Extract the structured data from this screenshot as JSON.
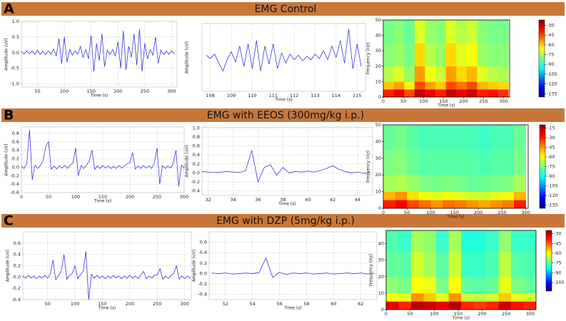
{
  "sections": [
    {
      "letter": "A",
      "title": "EMG Control"
    },
    {
      "letter": "B",
      "title": "EMG with EEOS (300mg/kg i.p.)"
    },
    {
      "letter": "C",
      "title": "EMG with DZP (5mg/kg i.p.)"
    }
  ],
  "chart_data": [
    {
      "type": "line",
      "xlabel": "Time (s)",
      "ylabel": "Amplitude (uV)",
      "color": "#1f1fd6",
      "grid": true,
      "xlim": [
        20,
        310
      ],
      "xticks": [
        50,
        100,
        150,
        200,
        250,
        300
      ],
      "ylim": [
        -1.1,
        1.0
      ],
      "yticks": [
        {
          "value": -1,
          "label": "-1.0"
        },
        -0.5,
        {
          "value": 0,
          "label": "0.0"
        },
        0.5,
        {
          "value": 1,
          "label": "1.0"
        }
      ],
      "x": [
        20,
        25,
        30,
        35,
        40,
        45,
        50,
        55,
        60,
        65,
        70,
        75,
        80,
        85,
        90,
        95,
        100,
        105,
        110,
        115,
        120,
        125,
        130,
        135,
        140,
        145,
        150,
        155,
        160,
        165,
        170,
        175,
        180,
        185,
        190,
        195,
        200,
        205,
        210,
        215,
        220,
        225,
        230,
        235,
        240,
        245,
        250,
        255,
        260,
        265,
        270,
        275,
        280,
        285,
        290,
        295,
        300,
        305
      ],
      "values": [
        0.04,
        -0.05,
        0.06,
        -0.04,
        0.05,
        -0.06,
        0.08,
        -0.05,
        0.05,
        -0.07,
        0.06,
        -0.05,
        0.12,
        -0.1,
        0.45,
        -0.35,
        0.5,
        -0.3,
        0.1,
        -0.08,
        0.06,
        -0.05,
        0.2,
        -0.15,
        0.1,
        -0.2,
        0.55,
        -0.6,
        0.3,
        -0.25,
        0.6,
        -0.45,
        0.08,
        -0.06,
        0.1,
        -0.1,
        0.35,
        -0.5,
        0.7,
        -0.55,
        0.2,
        -0.15,
        0.6,
        -0.4,
        0.75,
        -0.6,
        0.3,
        -0.2,
        0.1,
        -0.08,
        0.5,
        -0.35,
        0.08,
        -0.06,
        0.05,
        -0.05,
        0.06,
        -0.04
      ]
    },
    {
      "type": "line",
      "xlabel": "Time (s)",
      "ylabel": "Amplitude (uV)",
      "color": "#1f1fd6",
      "grid": true,
      "xlim": [
        107.6,
        115.4
      ],
      "xticks": [
        108,
        109,
        110,
        111,
        112,
        113,
        114,
        115
      ],
      "ylim": [
        -0.3,
        0.3
      ],
      "yticks": [],
      "x": [
        107.8,
        108.0,
        108.2,
        108.4,
        108.6,
        108.8,
        109.0,
        109.2,
        109.4,
        109.6,
        109.8,
        110.0,
        110.2,
        110.4,
        110.6,
        110.8,
        111.0,
        111.2,
        111.4,
        111.6,
        111.8,
        112.0,
        112.2,
        112.4,
        112.6,
        112.8,
        113.0,
        113.2,
        113.4,
        113.6,
        113.8,
        114.0,
        114.2,
        114.4,
        114.6,
        114.8,
        115.0,
        115.2
      ],
      "values": [
        0.02,
        -0.01,
        0.03,
        -0.05,
        -0.12,
        -0.02,
        0.05,
        -0.04,
        0.1,
        -0.08,
        0.12,
        -0.1,
        0.15,
        -0.12,
        0.1,
        -0.06,
        0.12,
        -0.1,
        0.04,
        -0.05,
        0.03,
        -0.02,
        0.02,
        -0.03,
        0.01,
        -0.02,
        0.03,
        -0.01,
        0.06,
        -0.02,
        0.1,
        0.0,
        0.15,
        -0.05,
        0.25,
        -0.1,
        0.12,
        -0.08
      ]
    },
    {
      "type": "heatmap",
      "xlabel": "Time (s)",
      "ylabel": "Frequency (Hz)",
      "xlim": [
        0,
        315
      ],
      "xticks": [
        0,
        50,
        100,
        150,
        200,
        250,
        300
      ],
      "ylim": [
        0,
        50
      ],
      "yticks": [
        0,
        10,
        20,
        30,
        40,
        50
      ],
      "xbins": [
        0,
        26,
        52,
        78,
        104,
        130,
        156,
        182,
        208,
        234,
        260,
        286,
        312
      ],
      "ybins": [
        0,
        5,
        10,
        20,
        35,
        50
      ],
      "clim": [
        -140,
        -22
      ],
      "cticks": [
        -30,
        -45,
        -60,
        -75,
        -90,
        -105,
        -120,
        -135
      ],
      "values": [
        [
          -40,
          -35,
          -45,
          -30,
          -35,
          -40,
          -30,
          -35,
          -30,
          -40,
          -38,
          -42
        ],
        [
          -60,
          -55,
          -65,
          -45,
          -55,
          -60,
          -45,
          -50,
          -45,
          -58,
          -60,
          -62
        ],
        [
          -75,
          -70,
          -78,
          -55,
          -68,
          -72,
          -55,
          -62,
          -58,
          -70,
          -74,
          -76
        ],
        [
          -80,
          -78,
          -82,
          -62,
          -75,
          -78,
          -62,
          -70,
          -66,
          -78,
          -80,
          -80
        ],
        [
          -82,
          -80,
          -84,
          -70,
          -78,
          -80,
          -70,
          -75,
          -72,
          -80,
          -82,
          -82
        ]
      ]
    },
    {
      "type": "line",
      "xlabel": "Time (s)",
      "ylabel": "Amplitude (uV)",
      "color": "#1f1fd6",
      "grid": true,
      "xlim": [
        0,
        300
      ],
      "xticks": [
        0,
        50,
        100,
        150,
        200,
        250,
        300
      ],
      "ylim": [
        -0.6,
        0.95
      ],
      "yticks": [
        -0.6,
        -0.4,
        -0.2,
        {
          "value": 0,
          "label": "0.0"
        },
        0.2,
        0.4,
        0.6,
        0.8
      ],
      "x": [
        0,
        5,
        10,
        15,
        20,
        25,
        30,
        35,
        40,
        45,
        50,
        55,
        60,
        65,
        70,
        75,
        80,
        85,
        90,
        95,
        100,
        105,
        110,
        115,
        120,
        125,
        130,
        135,
        140,
        145,
        150,
        155,
        160,
        165,
        170,
        175,
        180,
        185,
        190,
        195,
        200,
        205,
        210,
        215,
        220,
        225,
        230,
        235,
        240,
        245,
        250,
        255,
        260,
        265,
        270,
        275,
        280,
        285,
        290,
        295,
        300
      ],
      "values": [
        0.02,
        -0.03,
        0.1,
        0.88,
        -0.3,
        0.05,
        -0.03,
        0.04,
        0.15,
        0.5,
        0.6,
        -0.05,
        0.03,
        -0.04,
        0.03,
        -0.02,
        0.04,
        -0.03,
        0.05,
        0.1,
        0.45,
        -0.2,
        0.04,
        -0.03,
        0.05,
        0.15,
        0.4,
        -0.05,
        0.03,
        -0.03,
        0.04,
        -0.02,
        0.03,
        -0.03,
        0.02,
        -0.03,
        0.04,
        -0.02,
        0.03,
        0.08,
        0.1,
        0.35,
        -0.04,
        0.03,
        -0.03,
        0.04,
        -0.02,
        0.03,
        -0.03,
        0.1,
        0.45,
        -0.4,
        0.04,
        -0.03,
        0.03,
        -0.02,
        0.1,
        0.4,
        -0.45,
        0.05,
        -0.02
      ]
    },
    {
      "type": "line",
      "xlabel": "Time (s)",
      "ylabel": "Amplitude (uV)",
      "color": "#1f1fd6",
      "grid": true,
      "xlim": [
        31.5,
        45.2
      ],
      "xticks": [
        32,
        34,
        36,
        38,
        40,
        42,
        44
      ],
      "ylim": [
        -0.5,
        1.02
      ],
      "yticks": [
        -0.4,
        -0.2,
        {
          "value": 0,
          "label": "0.0"
        },
        0.2,
        0.4,
        0.6,
        0.8,
        {
          "value": 1,
          "label": "1.0"
        }
      ],
      "x": [
        31.5,
        32,
        32.5,
        33,
        33.5,
        34,
        34.5,
        35,
        35.5,
        36,
        36.5,
        37,
        37.5,
        38,
        38.5,
        39,
        39.5,
        40,
        40.5,
        41,
        41.5,
        42,
        42.5,
        43,
        43.5,
        44,
        44.5,
        45
      ],
      "values": [
        0.03,
        0.02,
        0.01,
        0.02,
        0.03,
        0.02,
        0.01,
        0.05,
        0.5,
        -0.2,
        0.12,
        0.18,
        -0.05,
        0.12,
        0.0,
        0.03,
        0.02,
        0.04,
        0.02,
        0.05,
        0.1,
        0.16,
        0.08,
        0.03,
        0.0,
        0.02,
        -0.01,
        0.02
      ]
    },
    {
      "type": "heatmap",
      "xlabel": "Time (s)",
      "ylabel": "Frequency (Hz)",
      "xlim": [
        0,
        305
      ],
      "xticks": [
        0,
        50,
        100,
        150,
        200,
        250,
        300
      ],
      "ylim": [
        0,
        50
      ],
      "yticks": [
        0,
        10,
        20,
        30,
        40,
        50
      ],
      "xbins": [
        0,
        25,
        50,
        75,
        100,
        125,
        150,
        175,
        200,
        225,
        250,
        275,
        300
      ],
      "ybins": [
        0,
        5,
        10,
        20,
        35,
        50
      ],
      "clim": [
        -140,
        -10
      ],
      "cticks": [
        -15,
        -30,
        -45,
        -60,
        -75,
        -90,
        -105,
        -120,
        -135
      ],
      "values": [
        [
          -30,
          -25,
          -35,
          -40,
          -45,
          -40,
          -42,
          -45,
          -48,
          -45,
          -42,
          -30
        ],
        [
          -50,
          -45,
          -55,
          -60,
          -62,
          -60,
          -62,
          -64,
          -65,
          -62,
          -60,
          -50
        ],
        [
          -70,
          -68,
          -72,
          -75,
          -76,
          -75,
          -76,
          -78,
          -78,
          -76,
          -75,
          -70
        ],
        [
          -75,
          -74,
          -78,
          -80,
          -80,
          -80,
          -80,
          -80,
          -82,
          -80,
          -80,
          -76
        ],
        [
          -78,
          -76,
          -80,
          -82,
          -82,
          -82,
          -82,
          -82,
          -84,
          -82,
          -82,
          -78
        ]
      ]
    },
    {
      "type": "line",
      "xlabel": "Time (s)",
      "ylabel": "Amplitude (uV)",
      "color": "#1f1fd6",
      "grid": true,
      "xlim": [
        5,
        312
      ],
      "xticks": [
        50,
        100,
        150,
        200,
        250,
        300
      ],
      "ylim": [
        -0.4,
        0.8
      ],
      "yticks": [
        -0.4,
        -0.2,
        {
          "value": 0,
          "label": "0.0"
        },
        0.2,
        0.4,
        0.6
      ],
      "x": [
        5,
        10,
        15,
        20,
        25,
        30,
        35,
        40,
        45,
        50,
        55,
        60,
        65,
        70,
        75,
        80,
        85,
        90,
        95,
        100,
        105,
        110,
        115,
        120,
        125,
        130,
        135,
        140,
        145,
        150,
        155,
        160,
        165,
        170,
        175,
        180,
        185,
        190,
        195,
        200,
        205,
        210,
        215,
        220,
        225,
        230,
        235,
        240,
        245,
        250,
        255,
        260,
        265,
        270,
        275,
        280,
        285,
        290,
        295,
        300,
        305,
        310
      ],
      "values": [
        0.02,
        -0.02,
        0.03,
        -0.02,
        0.02,
        -0.03,
        0.02,
        -0.02,
        0.03,
        -0.02,
        0.05,
        0.3,
        -0.05,
        0.03,
        0.1,
        0.4,
        -0.04,
        0.03,
        0.06,
        0.2,
        -0.03,
        0.04,
        0.1,
        0.45,
        -0.4,
        0.05,
        -0.02,
        0.03,
        -0.02,
        0.02,
        -0.03,
        0.02,
        -0.02,
        0.03,
        -0.02,
        0.02,
        -0.03,
        0.02,
        -0.02,
        0.03,
        -0.02,
        0.02,
        -0.03,
        0.04,
        0.1,
        -0.03,
        0.02,
        -0.02,
        0.03,
        0.04,
        0.15,
        -0.04,
        0.02,
        -0.03,
        0.03,
        0.06,
        0.2,
        -0.04,
        0.02,
        -0.03,
        0.02,
        -0.02
      ]
    },
    {
      "type": "line",
      "xlabel": "Time (s)",
      "ylabel": "Amplitude (uV)",
      "color": "#1f1fd6",
      "grid": true,
      "xlim": [
        50.8,
        63.2
      ],
      "xticks": [
        52,
        54,
        56,
        58,
        60,
        62
      ],
      "ylim": [
        -0.5,
        0.8
      ],
      "yticks": [
        -0.4,
        -0.2,
        {
          "value": 0,
          "label": "0.0"
        },
        0.2,
        0.4,
        0.6
      ],
      "x": [
        51,
        51.5,
        52,
        52.5,
        53,
        53.5,
        54,
        54.5,
        55,
        55.5,
        56,
        56.5,
        57,
        57.5,
        58,
        58.5,
        59,
        59.5,
        60,
        60.5,
        61,
        61.5,
        62,
        62.5,
        63
      ],
      "values": [
        0.01,
        0.0,
        0.01,
        -0.01,
        0.0,
        0.01,
        0.0,
        0.02,
        0.3,
        -0.08,
        0.03,
        -0.02,
        0.01,
        0.0,
        0.01,
        -0.01,
        0.0,
        0.01,
        -0.01,
        0.0,
        0.01,
        0.0,
        0.01,
        -0.01,
        0.0
      ]
    },
    {
      "type": "heatmap",
      "xlabel": "Time (s)",
      "ylabel": "Frequency (Hz)",
      "xlim": [
        0,
        312
      ],
      "xticks": [
        0,
        50,
        100,
        150,
        200,
        250,
        300
      ],
      "ylim": [
        0,
        48
      ],
      "yticks": [
        0,
        10,
        20,
        30,
        40
      ],
      "xbins": [
        0,
        26,
        52,
        78,
        104,
        130,
        156,
        182,
        208,
        234,
        260,
        286,
        312
      ],
      "ybins": [
        0,
        5,
        10,
        20,
        35,
        48
      ],
      "clim": [
        -118,
        -25
      ],
      "cticks": [
        -30,
        -45,
        -60,
        -75,
        -90,
        -105
      ],
      "values": [
        [
          -35,
          -40,
          -30,
          -32,
          -35,
          -30,
          -40,
          -42,
          -40,
          -32,
          -38,
          -40
        ],
        [
          -60,
          -62,
          -50,
          -55,
          -62,
          -50,
          -65,
          -66,
          -64,
          -55,
          -62,
          -64
        ],
        [
          -70,
          -72,
          -60,
          -62,
          -72,
          -60,
          -74,
          -75,
          -74,
          -62,
          -72,
          -74
        ],
        [
          -74,
          -75,
          -64,
          -68,
          -75,
          -65,
          -78,
          -78,
          -76,
          -66,
          -75,
          -76
        ],
        [
          -76,
          -78,
          -68,
          -70,
          -78,
          -68,
          -80,
          -80,
          -78,
          -70,
          -78,
          -78
        ]
      ]
    }
  ]
}
